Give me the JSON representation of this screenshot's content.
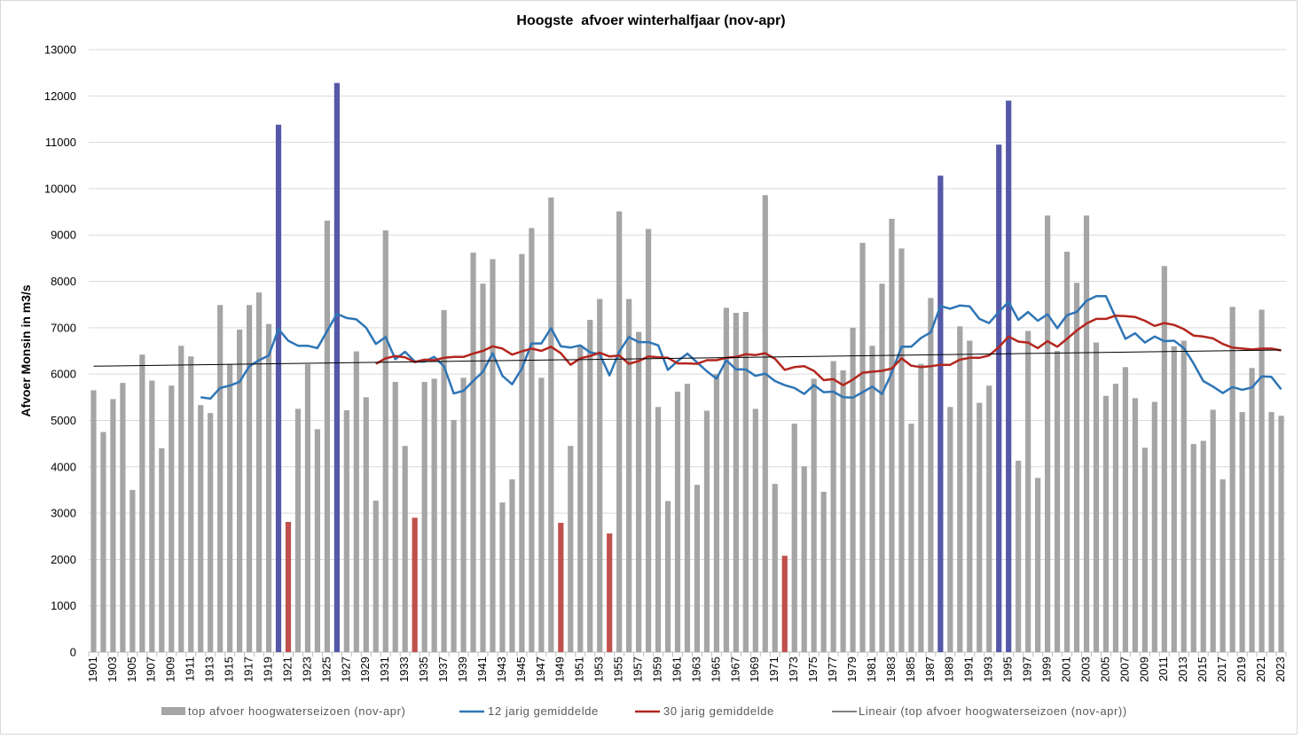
{
  "chart_data": {
    "type": "bar",
    "title": "Hoogste  afvoer winterhalfjaar (nov-apr)",
    "xlabel": "",
    "ylabel": "Afvoer Monsin in m3/s",
    "ylim": [
      0,
      13000
    ],
    "grid": "horizontal",
    "legend_position": "bottom",
    "y_tick_labels": [
      "0",
      "1000",
      "2000",
      "3000",
      "4000",
      "5000",
      "6000",
      "7000",
      "8000",
      "9000",
      "10000",
      "11000",
      "12000",
      "13000"
    ],
    "x_tick_labels": [
      "1901",
      "1903",
      "1905",
      "1907",
      "1909",
      "1911",
      "1913",
      "1915",
      "1917",
      "1919",
      "1921",
      "1923",
      "1925",
      "1927",
      "1929",
      "1931",
      "1933",
      "1935",
      "1937",
      "1939",
      "1941",
      "1943",
      "1945",
      "1947",
      "1949",
      "1951",
      "1953",
      "1955",
      "1957",
      "1959",
      "1961",
      "1963",
      "1965",
      "1967",
      "1969",
      "1971",
      "1973",
      "1975",
      "1977",
      "1979",
      "1981",
      "1983",
      "1985",
      "1987",
      "1989",
      "1991",
      "1993",
      "1995",
      "1997",
      "1999",
      "2001",
      "2003",
      "2005",
      "2007",
      "2009",
      "2011",
      "2013",
      "2015",
      "2017",
      "2019",
      "2021",
      "2023"
    ],
    "x": [
      1901,
      1902,
      1903,
      1904,
      1905,
      1906,
      1907,
      1908,
      1909,
      1910,
      1911,
      1912,
      1913,
      1914,
      1915,
      1916,
      1917,
      1918,
      1919,
      1920,
      1921,
      1922,
      1923,
      1924,
      1925,
      1926,
      1927,
      1928,
      1929,
      1930,
      1931,
      1932,
      1933,
      1934,
      1935,
      1936,
      1937,
      1938,
      1939,
      1940,
      1941,
      1942,
      1943,
      1944,
      1945,
      1946,
      1947,
      1948,
      1949,
      1950,
      1951,
      1952,
      1953,
      1954,
      1955,
      1956,
      1957,
      1958,
      1959,
      1960,
      1961,
      1962,
      1963,
      1964,
      1965,
      1966,
      1967,
      1968,
      1969,
      1970,
      1971,
      1972,
      1973,
      1974,
      1975,
      1976,
      1977,
      1978,
      1979,
      1980,
      1981,
      1982,
      1983,
      1984,
      1985,
      1986,
      1987,
      1988,
      1989,
      1990,
      1991,
      1992,
      1993,
      1994,
      1995,
      1996,
      1997,
      1998,
      1999,
      2000,
      2001,
      2002,
      2003,
      2004,
      2005,
      2006,
      2007,
      2008,
      2009,
      2010,
      2011,
      2012,
      2013,
      2014,
      2015,
      2016,
      2017,
      2018,
      2019,
      2020,
      2021,
      2022,
      2023
    ],
    "series": [
      {
        "name": "top afvoer hoogwaterseizoen (nov-apr)",
        "type": "bar",
        "color": "#a5a5a5",
        "values": [
          5650,
          4750,
          5460,
          5810,
          3500,
          6420,
          5860,
          4400,
          5750,
          6610,
          6380,
          5330,
          5160,
          7490,
          6220,
          6960,
          7490,
          7760,
          7080,
          11380,
          2810,
          5250,
          6210,
          4810,
          9310,
          12280,
          5220,
          6490,
          5500,
          3270,
          9100,
          5830,
          4450,
          2900,
          5830,
          5900,
          7380,
          5010,
          5920,
          8620,
          7950,
          8480,
          3230,
          3730,
          8590,
          9150,
          5920,
          9810,
          2790,
          4450,
          6600,
          7170,
          7620,
          2560,
          9510,
          7620,
          6910,
          9130,
          5290,
          3260,
          5620,
          5790,
          3610,
          5210,
          6000,
          7430,
          7320,
          7340,
          5250,
          9860,
          3630,
          2080,
          4930,
          4010,
          5900,
          3460,
          6280,
          6080,
          7000,
          8830,
          6610,
          7950,
          9350,
          8710,
          4930,
          6220,
          7640,
          10280,
          5290,
          7030,
          6720,
          5380,
          5750,
          10950,
          11900,
          4130,
          6930,
          3760,
          9420,
          6500,
          8640,
          7970,
          9420,
          6680,
          5530,
          5790,
          6150,
          5480,
          4410,
          5400,
          8330,
          6600,
          6720,
          4490,
          4560,
          5230,
          3730,
          7450,
          5180,
          6130,
          7390,
          5180,
          5100
        ]
      },
      {
        "name": "12 jarig gemiddelde",
        "type": "line",
        "color": "#2e75b6",
        "values": [
          null,
          null,
          null,
          null,
          null,
          null,
          null,
          null,
          null,
          null,
          null,
          5500,
          5470,
          5700,
          5750,
          5830,
          6170,
          6300,
          6400,
          6970,
          6720,
          6610,
          6610,
          6560,
          6930,
          7300,
          7210,
          7180,
          7000,
          6650,
          6800,
          6320,
          6480,
          6270,
          6270,
          6370,
          6170,
          5580,
          5640,
          5850,
          6050,
          6450,
          5960,
          5780,
          6120,
          6660,
          6660,
          6990,
          6600,
          6570,
          6620,
          6470,
          6430,
          5970,
          6480,
          6800,
          6690,
          6690,
          6620,
          6090,
          6280,
          6440,
          6250,
          6060,
          5900,
          6300,
          6100,
          6100,
          5960,
          6010,
          5850,
          5760,
          5700,
          5570,
          5760,
          5610,
          5620,
          5500,
          5490,
          5610,
          5730,
          5570,
          6030,
          6590,
          6590,
          6780,
          6900,
          7470,
          7410,
          7480,
          7460,
          7190,
          7100,
          7340,
          7560,
          7170,
          7340,
          7150,
          7290,
          6990,
          7270,
          7340,
          7580,
          7680,
          7680,
          7220,
          6760,
          6880,
          6680,
          6810,
          6710,
          6720,
          6560,
          6230,
          5850,
          5730,
          5590,
          5720,
          5660,
          5710,
          5950,
          5940,
          5670
        ]
      },
      {
        "name": "30 jarig gemiddelde",
        "type": "line",
        "color": "#b3261e",
        "values": [
          null,
          null,
          null,
          null,
          null,
          null,
          null,
          null,
          null,
          null,
          null,
          null,
          null,
          null,
          null,
          null,
          null,
          null,
          null,
          null,
          null,
          null,
          null,
          null,
          null,
          null,
          null,
          null,
          null,
          6220,
          6340,
          6390,
          6360,
          6260,
          6310,
          6300,
          6350,
          6370,
          6370,
          6440,
          6500,
          6600,
          6550,
          6420,
          6490,
          6550,
          6500,
          6590,
          6450,
          6200,
          6340,
          6390,
          6460,
          6380,
          6400,
          6220,
          6280,
          6380,
          6360,
          6350,
          6230,
          6230,
          6220,
          6300,
          6300,
          6350,
          6370,
          6430,
          6410,
          6450,
          6330,
          6090,
          6150,
          6170,
          6070,
          5870,
          5890,
          5760,
          5880,
          6030,
          6050,
          6070,
          6120,
          6340,
          6180,
          6150,
          6170,
          6200,
          6200,
          6310,
          6350,
          6350,
          6400,
          6580,
          6810,
          6700,
          6680,
          6560,
          6710,
          6590,
          6760,
          6940,
          7090,
          7190,
          7190,
          7260,
          7250,
          7230,
          7150,
          7040,
          7100,
          7060,
          6970,
          6830,
          6810,
          6770,
          6650,
          6570,
          6550,
          6530,
          6550,
          6550,
          6510
        ]
      },
      {
        "name": "Lineair (top afvoer hoogwaterseizoen (nov-apr))",
        "type": "line",
        "color": "#000000",
        "x": [
          1901,
          2023
        ],
        "values": [
          6170,
          6520
        ]
      }
    ],
    "highlight": {
      "high_color": "#5458a7",
      "high_years": [
        1920,
        1926,
        1988,
        1994,
        1995
      ],
      "low_color": "#c0504d",
      "low_years": [
        1921,
        1934,
        1949,
        1954,
        1972
      ]
    }
  }
}
